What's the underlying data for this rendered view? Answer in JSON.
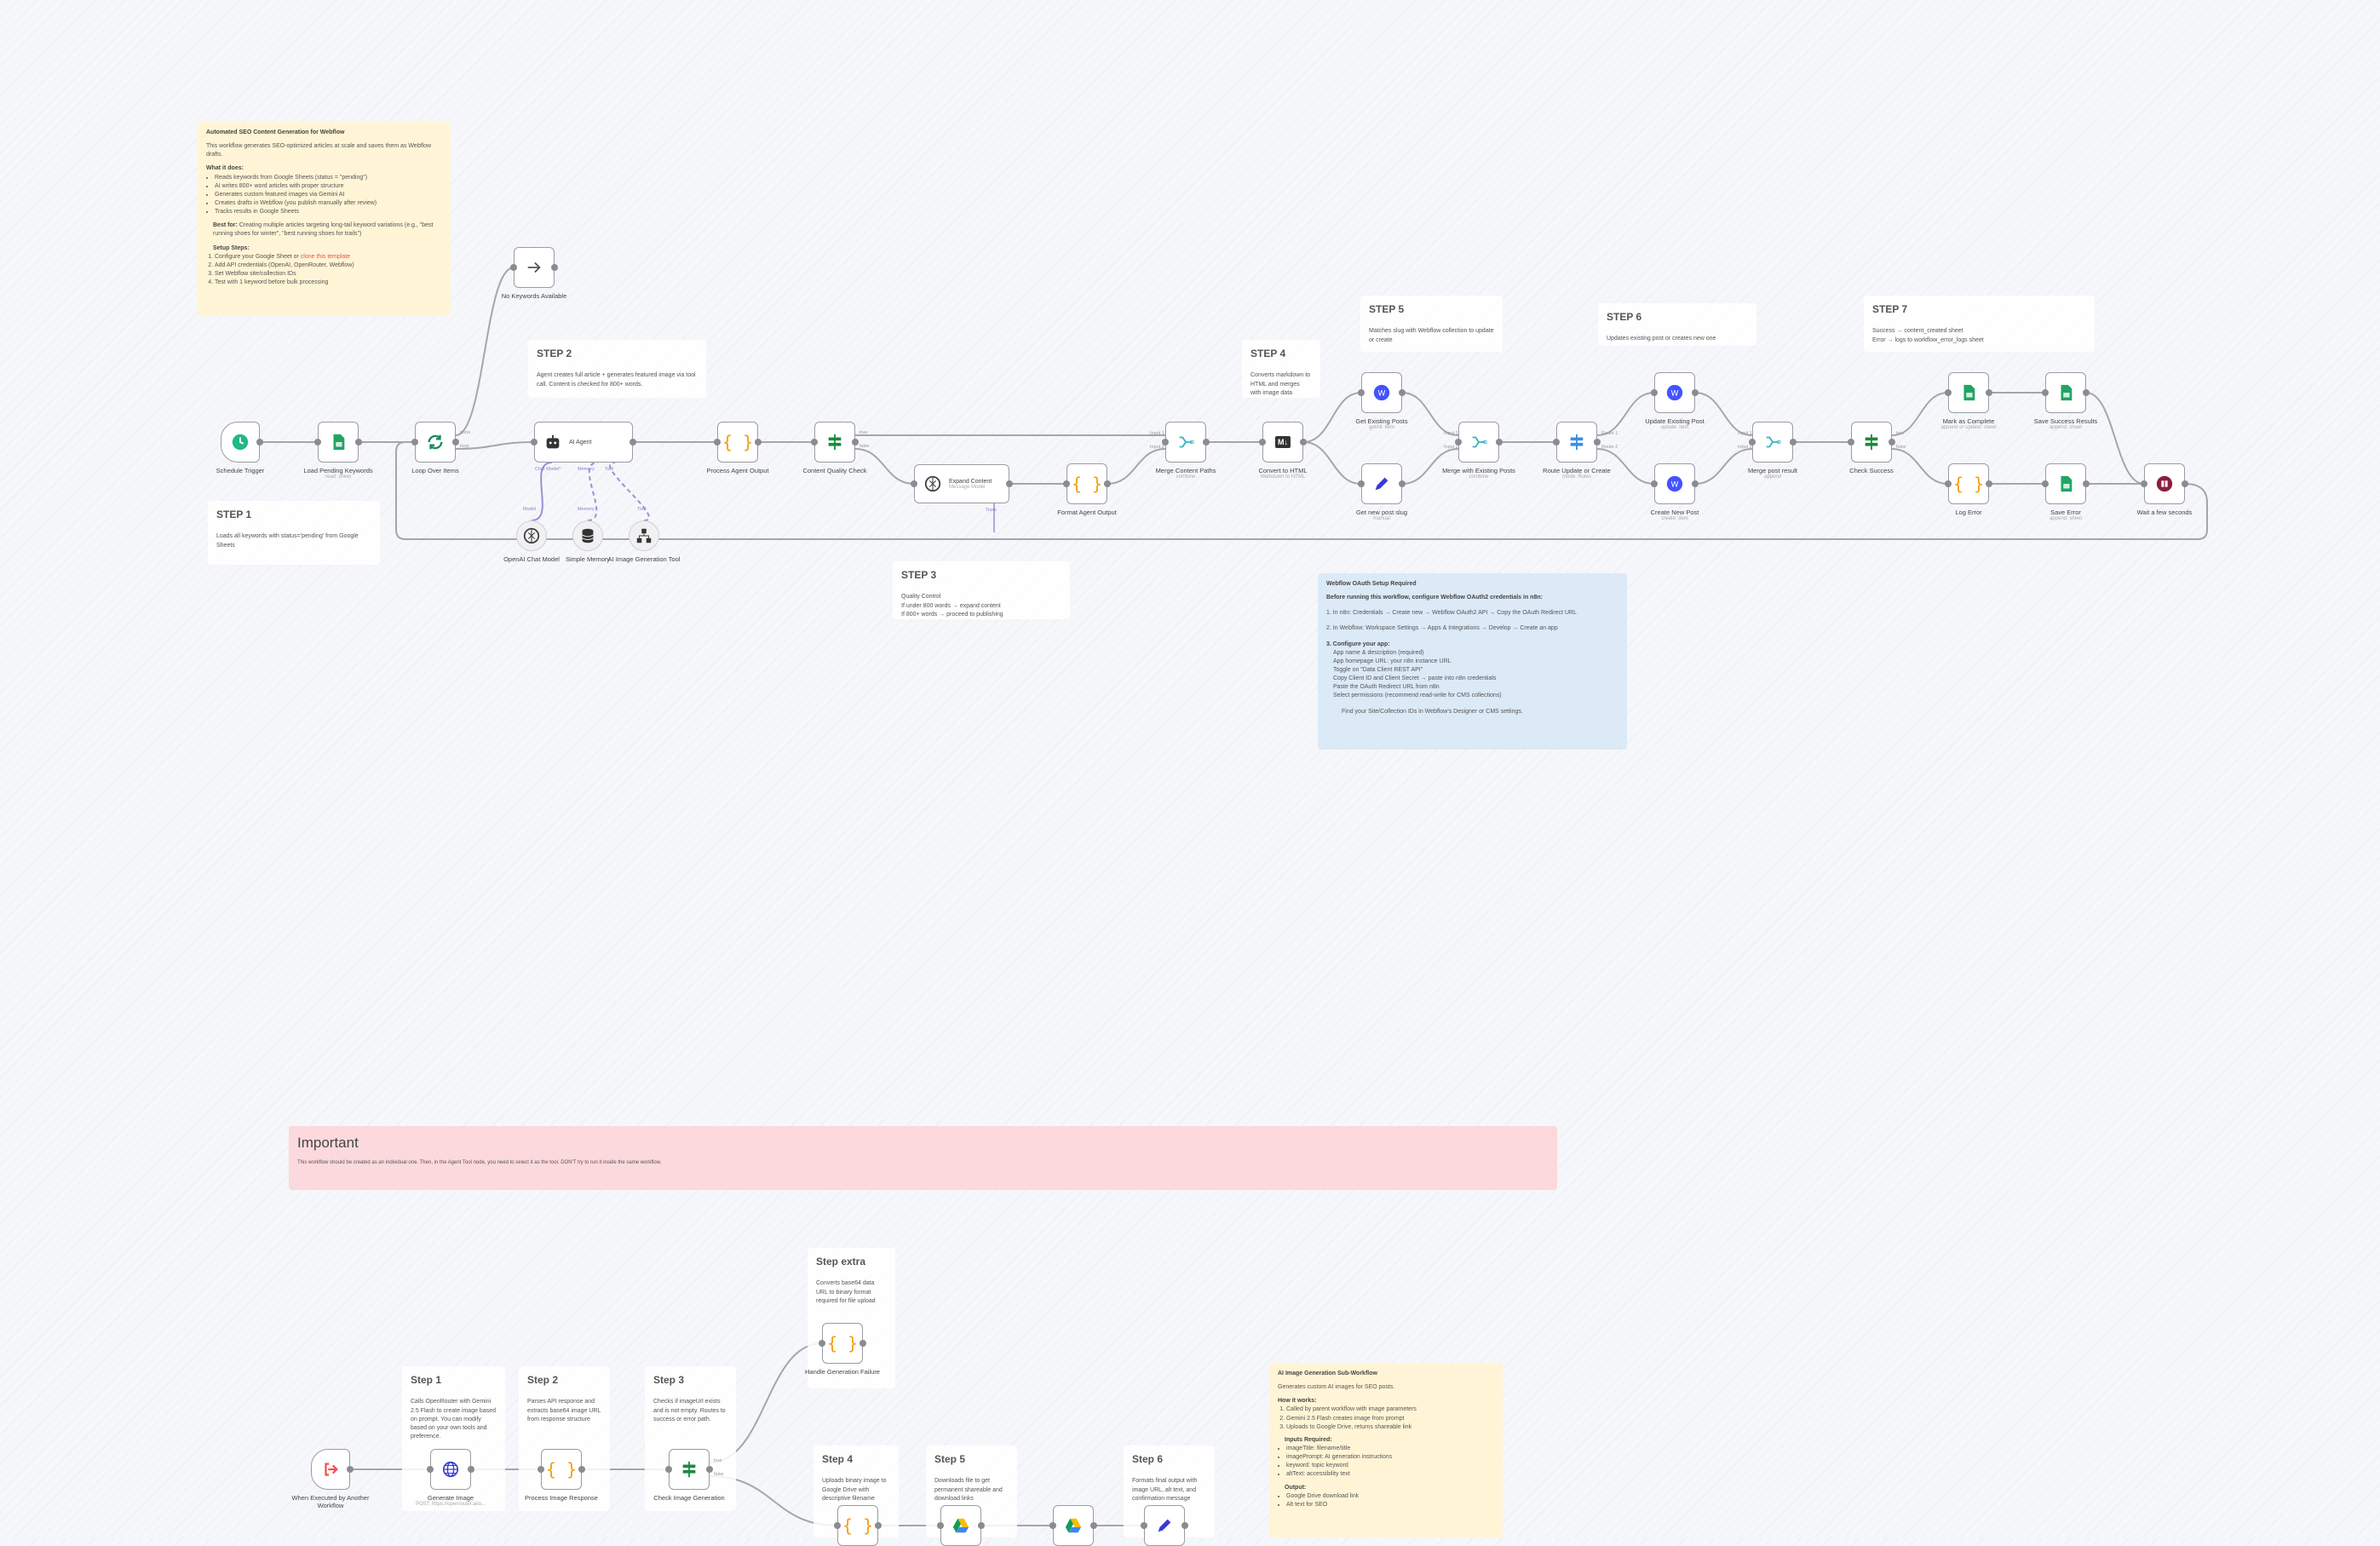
{
  "main_sticky": {
    "title": "Automated SEO Content Generation for Webflow",
    "intro": "This workflow generates SEO-optimized articles at scale and saves them as Webflow drafts.",
    "what_title": "What it does:",
    "what": [
      "Reads keywords from Google Sheets (status = \"pending\")",
      "AI writes 800+ word articles with proper structure",
      "Generates custom featured images via Gemini AI",
      "Creates drafts in Webflow (you publish manually after review)",
      "Tracks results in Google Sheets"
    ],
    "best_label": "Best for:",
    "best": "Creating multiple articles targeting long-tail keyword variations (e.g., \"best running shoes for winter\", \"best running shoes for trails\")",
    "setup_title": "Setup Steps:",
    "setup": [
      "Configure your Google Sheet or ",
      "Add API credentials (OpenAI, OpenRouter, Webflow)",
      "Set Webflow site/collection IDs",
      "Test with 1 keyword before bulk processing"
    ],
    "setup_link": "clone this template"
  },
  "steps": {
    "s1": {
      "title": "STEP 1",
      "text": "Loads all keywords with status='pending' from Google Sheets"
    },
    "s2": {
      "title": "STEP 2",
      "text": "Agent creates full article + generates featured image via tool call. Content is checked for 800+ words."
    },
    "s3": {
      "title": "STEP 3",
      "lines": [
        "Quality Control",
        "If under 800 words → expand content",
        "If 800+ words → proceed to publishing"
      ]
    },
    "s4": {
      "title": "STEP 4",
      "text": "Converts markdown to HTML and merges with image data"
    },
    "s5": {
      "title": "STEP 5",
      "text": "Matches slug with Webflow collection to update or create"
    },
    "s6": {
      "title": "STEP 6",
      "text": "Updates existing post or creates new one"
    },
    "s7": {
      "title": "STEP 7",
      "lines": [
        "Success → content_created sheet",
        "Error → logs to workflow_error_logs sheet"
      ]
    }
  },
  "oauth": {
    "title": "Webflow OAuth Setup Required",
    "intro": "Before running this workflow, configure Webflow OAuth2 credentials in n8n:",
    "step1": "1. In n8n: Credentials → Create new → Webflow OAuth2 API → Copy the OAuth Redirect URL",
    "step2": "2. In Webflow: Workspace Settings → Apps & Integrations → Develop → Create an app",
    "step3": "3. Configure your app:",
    "items": [
      "App name & description (required)",
      "App homepage URL: your n8n instance URL",
      "Toggle on \"Data Client REST API\"",
      "Copy Client ID and Client Secret → paste into n8n credentials",
      "Paste the OAuth Redirect URL from n8n",
      "Select permissions (recommend read-write for CMS collections)"
    ],
    "footer": "Find your Site/Collection IDs in Webflow's Designer or CMS settings."
  },
  "important": {
    "title": "Important",
    "text": "This workflow should be created as an individual one. Then, in the Agent Tool node, you need to select it as the tool. DON'T try to run it inside the same workflow."
  },
  "sub_steps": {
    "s1": {
      "title": "Step 1",
      "text": "Calls OpenRouter with Gemini 2.5 Flash to create image based on prompt. You can modify based on your own tools and preference."
    },
    "s2": {
      "title": "Step 2",
      "text": "Parses API response and extracts base64 image URL from response structure"
    },
    "s3": {
      "title": "Step 3",
      "text": "Checks if imageUrl exists and is not empty. Routes to success or error path."
    },
    "extra": {
      "title": "Step extra",
      "text": "Converts base64 data URL to binary format required for file upload"
    },
    "s4": {
      "title": "Step 4",
      "text": "Uploads binary image to Google Drive with descriptive filename"
    },
    "s5": {
      "title": "Step 5",
      "text": "Downloads file to get permanent shareable and download links"
    },
    "s6": {
      "title": "Step 6",
      "text": "Formats final output with image URL, alt text, and confirmation message"
    }
  },
  "sub_sticky": {
    "title": "AI Image Generation Sub-Workflow",
    "intro": "Generates custom AI images for SEO posts.",
    "how_title": "How it works:",
    "how": [
      "Called by parent workflow with image parameters",
      "Gemini 2.5 Flash creates image from prompt",
      "Uploads to Google Drive, returns shareable link"
    ],
    "inputs_title": "Inputs Required:",
    "inputs": [
      "imageTitle: filename/title",
      "imagePrompt: AI generation instructions",
      "keyword: topic keyword",
      "altText: accessibility text"
    ],
    "output_title": "Output:",
    "outputs": [
      "Google Drive download link",
      "Alt text for SEO"
    ]
  },
  "nodes": [
    {
      "id": "schedule",
      "label": "Schedule Trigger",
      "icon": "clock-icon"
    },
    {
      "id": "load",
      "label": "Load Pending Keywords",
      "sub": "read: sheet",
      "icon": "google-sheets-icon"
    },
    {
      "id": "loop",
      "label": "Loop Over Items",
      "icon": "loop-icon"
    },
    {
      "id": "nokw",
      "label": "No Keywords Available",
      "icon": "arrow-right-icon"
    },
    {
      "id": "agent",
      "label": "AI Agent",
      "icon": "robot-icon"
    },
    {
      "id": "procout",
      "label": "Process Agent Output",
      "icon": "code-braces-icon"
    },
    {
      "id": "qcheck",
      "label": "Content Quality Check",
      "icon": "if-icon"
    },
    {
      "id": "expand",
      "label": "Expand Content",
      "sub": "Message Model",
      "icon": "openai-icon"
    },
    {
      "id": "format",
      "label": "Format Agent Output",
      "icon": "code-braces-icon"
    },
    {
      "id": "merge1",
      "label": "Merge Content Paths",
      "sub": "combine",
      "icon": "merge-icon"
    },
    {
      "id": "html",
      "label": "Convert to HTML",
      "sub": "Markdown to HTML",
      "icon": "markdown-icon"
    },
    {
      "id": "getposts",
      "label": "Get Existing Posts",
      "sub": "getAll: item",
      "icon": "webflow-icon"
    },
    {
      "id": "slug",
      "label": "Get new post slug",
      "sub": "manual",
      "icon": "pencil-icon"
    },
    {
      "id": "merge2",
      "label": "Merge with Existing Posts",
      "sub": "combine",
      "icon": "merge-icon"
    },
    {
      "id": "route",
      "label": "Route Update or Create",
      "sub": "mode: Rules",
      "icon": "switch-icon"
    },
    {
      "id": "update",
      "label": "Update Existing Post",
      "sub": "update: item",
      "icon": "webflow-icon"
    },
    {
      "id": "create",
      "label": "Create New Post",
      "sub": "create: item",
      "icon": "webflow-icon"
    },
    {
      "id": "merge3",
      "label": "Merge post result",
      "sub": "append",
      "icon": "merge-icon"
    },
    {
      "id": "success",
      "label": "Check Success",
      "icon": "if-icon"
    },
    {
      "id": "complete",
      "label": "Mark as Complete",
      "sub": "append or update: sheet",
      "icon": "google-sheets-icon"
    },
    {
      "id": "saveok",
      "label": "Save Success Results",
      "sub": "append: sheet",
      "icon": "google-sheets-icon"
    },
    {
      "id": "logerr",
      "label": "Log Error",
      "icon": "code-braces-icon"
    },
    {
      "id": "saveerr",
      "label": "Save Error",
      "sub": "append: sheet",
      "icon": "google-sheets-icon"
    },
    {
      "id": "wait",
      "label": "Wait a few seconds",
      "icon": "pause-icon"
    },
    {
      "id": "chatmodel",
      "label": "OpenAI Chat Model",
      "icon": "openai-icon"
    },
    {
      "id": "memory",
      "label": "Simple Memory",
      "icon": "database-icon"
    },
    {
      "id": "imgtool",
      "label": "AI Image Generation Tool",
      "icon": "workflow-tool-icon"
    },
    {
      "id": "b_exec",
      "label": "When Executed by Another Workflow",
      "icon": "execute-workflow-icon"
    },
    {
      "id": "b_gen",
      "label": "Generate Image",
      "sub": "POST: https://openrouter.ai/a...",
      "icon": "globe-icon"
    },
    {
      "id": "b_proc",
      "label": "Process Image Response",
      "icon": "code-braces-icon"
    },
    {
      "id": "b_check",
      "label": "Check Image Generation",
      "icon": "if-icon"
    },
    {
      "id": "b_fail",
      "label": "Handle Generation Failure",
      "icon": "code-braces-icon"
    },
    {
      "id": "b_bin",
      "label": "",
      "icon": "code-braces-icon"
    },
    {
      "id": "b_up",
      "label": "",
      "icon": "google-drive-icon"
    },
    {
      "id": "b_dl",
      "label": "",
      "icon": "google-drive-icon"
    },
    {
      "id": "b_fmt",
      "label": "",
      "icon": "pencil-icon"
    }
  ],
  "port_labels": {
    "done": "done",
    "loop": "loop",
    "true": "true",
    "false": "false",
    "input1": "Input 1",
    "input2": "Input 2",
    "route1": "Route 1",
    "route2": "Route 2",
    "chat_model": "Chat Model*",
    "memory": "Memory",
    "tool": "Tool",
    "model": "Model",
    "tools": "Tools"
  },
  "colors": {
    "sheets": "#21a464",
    "code": "#f59e0b",
    "if": "#1a8a3f",
    "webflow": "#4353ff",
    "merge": "#34b3c4",
    "wait": "#8b1e3f",
    "trigger": "#1fb886",
    "sticky_yellow": "#fff5d6",
    "sticky_blue": "#dce9f7",
    "sticky_pink": "#fcd9dc"
  }
}
